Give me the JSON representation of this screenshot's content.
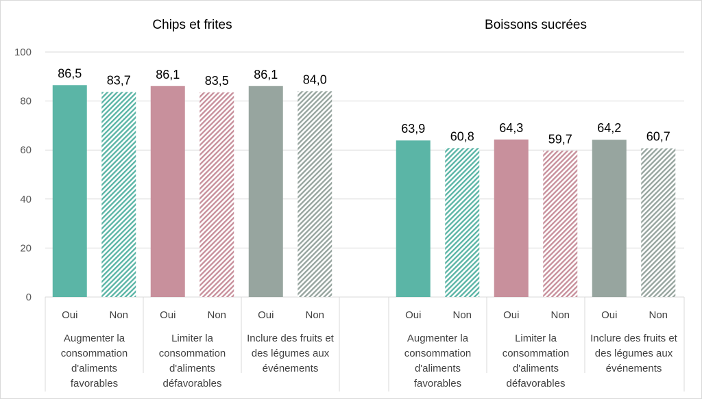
{
  "chart_data": {
    "type": "bar",
    "ylim": [
      0,
      100
    ],
    "yticks": [
      0,
      20,
      40,
      60,
      80,
      100
    ],
    "grid": true,
    "legend": "none",
    "colors": {
      "Augmenter la consommation d'aliments favorables": "#5bb5a6",
      "Limiter la consommation d'aliments défavorables": "#c8909c",
      "Inclure des fruits et des légumes aux événements": "#97a59f"
    },
    "level_labels": [
      "Oui",
      "Non"
    ],
    "groups": [
      "Augmenter la consommation d'aliments favorables",
      "Limiter la consommation d'aliments défavorables",
      "Inclure des fruits et des légumes aux événements"
    ],
    "group_label_lines": [
      [
        "Augmenter la",
        "consommation",
        "d'aliments",
        "favorables"
      ],
      [
        "Limiter la",
        "consommation",
        "d'aliments",
        "défavorables"
      ],
      [
        "Inclure des fruits et",
        "des légumes aux",
        "événements"
      ]
    ],
    "panels": [
      {
        "title": "Chips et frites",
        "values": [
          [
            86.5,
            83.7
          ],
          [
            86.1,
            83.5
          ],
          [
            86.1,
            84.0
          ]
        ],
        "labels": [
          [
            "86,5",
            "83,7"
          ],
          [
            "86,1",
            "83,5"
          ],
          [
            "86,1",
            "84,0"
          ]
        ]
      },
      {
        "title": "Boissons sucrées",
        "values": [
          [
            63.9,
            60.8
          ],
          [
            64.3,
            59.7
          ],
          [
            64.2,
            60.7
          ]
        ],
        "labels": [
          [
            "63,9",
            "60,8"
          ],
          [
            "64,3",
            "59,7"
          ],
          [
            "64,2",
            "60,7"
          ]
        ]
      }
    ]
  }
}
